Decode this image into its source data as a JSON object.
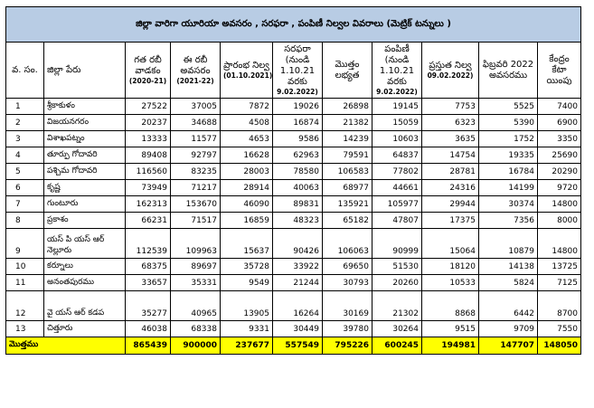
{
  "title": "జిల్లా వారిగా యూరియా అవసరం , సరఫరా , పంపిణీ నిల్వల వివరాలు (మెట్రిక్ టన్నులు )",
  "headers": {
    "sno": "వ. సం.",
    "district": "జిల్లా పేరు",
    "prev_rabi": "గత రబీ వాడకం",
    "prev_rabi_sub": "(2020-21)",
    "this_rabi": "ఈ రబీ అవసరం",
    "this_rabi_sub": "(2021-22)",
    "opening": "ప్రారంభ నిల్వ",
    "opening_sub": "(01.10.2021)",
    "supply": "సరఫరా (నుండి 1.10.21 వరకు",
    "supply_sub": "9.02.2022)",
    "total_avail": "మొత్తం లభ్యత",
    "distribution": "పంపిణీ (నుండి 1.10.21 వరకు",
    "distribution_sub": "9.02.2022)",
    "current_stock": "ప్రస్తుత నిల్వ",
    "current_stock_sub": "09.02.2022)",
    "feb_need": "ఫిబ్రవరి 2022 అవసరము",
    "central": "కేంద్రం కేటా యింపు"
  },
  "rows": [
    {
      "no": "1",
      "name": "శ్రీకాకుళం",
      "v": [
        "27522",
        "37005",
        "7872",
        "19026",
        "26898",
        "19145",
        "7753",
        "5525",
        "7400"
      ]
    },
    {
      "no": "2",
      "name": "విజయనగరం",
      "v": [
        "20237",
        "34688",
        "4508",
        "16874",
        "21382",
        "15059",
        "6323",
        "5390",
        "6900"
      ]
    },
    {
      "no": "3",
      "name": "విశాఖపట్నం",
      "v": [
        "13333",
        "11577",
        "4653",
        "9586",
        "14239",
        "10603",
        "3635",
        "1752",
        "3350"
      ]
    },
    {
      "no": "4",
      "name": "తూర్పు గోదావరి",
      "v": [
        "89408",
        "92797",
        "16628",
        "62963",
        "79591",
        "64837",
        "14754",
        "19335",
        "25690"
      ]
    },
    {
      "no": "5",
      "name": "పశ్చిమ గోదావరి",
      "v": [
        "116560",
        "83235",
        "28003",
        "78580",
        "106583",
        "77802",
        "28781",
        "16784",
        "20290"
      ]
    },
    {
      "no": "6",
      "name": "కృష్ణ",
      "v": [
        "73949",
        "71217",
        "28914",
        "40063",
        "68977",
        "44661",
        "24316",
        "14199",
        "9720"
      ]
    },
    {
      "no": "7",
      "name": "గుంటూరు",
      "v": [
        "162313",
        "153670",
        "46090",
        "89831",
        "135921",
        "105977",
        "29944",
        "30374",
        "14800"
      ]
    },
    {
      "no": "8",
      "name": "ప్రకాశం",
      "v": [
        "66231",
        "71517",
        "16859",
        "48323",
        "65182",
        "47807",
        "17375",
        "7356",
        "8000"
      ]
    },
    {
      "no": "9",
      "name": "యస్ పి యస్ ఆర్ నెల్లూరు",
      "tall": true,
      "v": [
        "112539",
        "109963",
        "15637",
        "90426",
        "106063",
        "90999",
        "15064",
        "10879",
        "14800"
      ]
    },
    {
      "no": "10",
      "name": "కర్నూలు",
      "v": [
        "68375",
        "89697",
        "35728",
        "33922",
        "69650",
        "51530",
        "18120",
        "14138",
        "13725"
      ]
    },
    {
      "no": "11",
      "name": "అనంతపురము",
      "v": [
        "33657",
        "35331",
        "9549",
        "21244",
        "30793",
        "20260",
        "10533",
        "5824",
        "7125"
      ]
    },
    {
      "no": "12",
      "name": "వై యస్ ఆర్ కడప",
      "tall": true,
      "v": [
        "35277",
        "40965",
        "13905",
        "16264",
        "30169",
        "21302",
        "8868",
        "6442",
        "8700"
      ]
    },
    {
      "no": "13",
      "name": "చిత్తూరు",
      "v": [
        "46038",
        "68338",
        "9331",
        "30449",
        "39780",
        "30264",
        "9515",
        "9709",
        "7550"
      ]
    }
  ],
  "total": {
    "label": "మొత్తము",
    "v": [
      "865439",
      "900000",
      "237677",
      "557549",
      "795226",
      "600245",
      "194981",
      "147707",
      "148050"
    ]
  }
}
